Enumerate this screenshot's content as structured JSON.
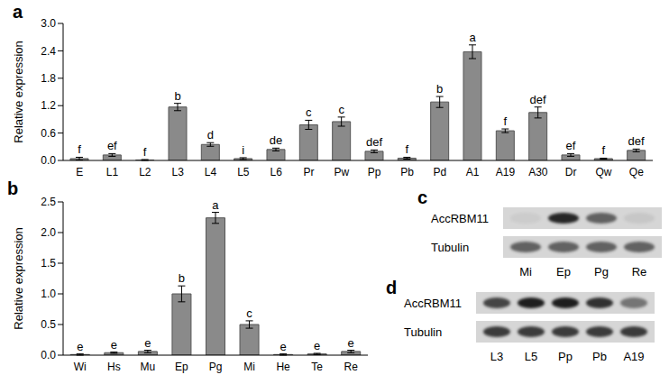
{
  "chart_data": [
    {
      "type": "bar",
      "panel": "a",
      "y_label": "Relative expression",
      "categories": [
        "E",
        "L1",
        "L2",
        "L3",
        "L4",
        "L5",
        "L6",
        "Pr",
        "Pw",
        "Pp",
        "Pb",
        "Pd",
        "A1",
        "A19",
        "A30",
        "Dr",
        "Qw",
        "Qe"
      ],
      "values": [
        0.04,
        0.12,
        0.01,
        1.17,
        0.35,
        0.04,
        0.24,
        0.78,
        0.85,
        0.2,
        0.05,
        1.28,
        2.38,
        0.65,
        1.05,
        0.12,
        0.04,
        0.22
      ],
      "errors": [
        0.03,
        0.03,
        0.01,
        0.08,
        0.04,
        0.02,
        0.03,
        0.1,
        0.1,
        0.03,
        0.02,
        0.12,
        0.15,
        0.04,
        0.12,
        0.03,
        0.01,
        0.03
      ],
      "letters": [
        "f",
        "ef",
        "f",
        "b",
        "d",
        "i",
        "de",
        "c",
        "c",
        "def",
        "f",
        "b",
        "a",
        "f",
        "def",
        "ef",
        "f",
        "def"
      ],
      "color": "#8a8a8a",
      "ylim": [
        0,
        3
      ],
      "yticks": [
        {
          "value": 0,
          "label": "0.0"
        },
        {
          "value": 0.6,
          "label": "0.6"
        },
        {
          "value": 1.2,
          "label": "1.2"
        },
        {
          "value": 1.8,
          "label": "1.8"
        },
        {
          "value": 2.4,
          "label": "2.4"
        },
        {
          "value": 3,
          "label": "3.0"
        }
      ]
    },
    {
      "type": "bar",
      "panel": "b",
      "y_label": "Relative expression",
      "categories": [
        "Wi",
        "Hs",
        "Mu",
        "Ep",
        "Pg",
        "Mi",
        "He",
        "Te",
        "Re"
      ],
      "values": [
        0.01,
        0.04,
        0.06,
        1.0,
        2.24,
        0.5,
        0.01,
        0.02,
        0.06
      ],
      "errors": [
        0.01,
        0.01,
        0.02,
        0.13,
        0.09,
        0.06,
        0.01,
        0.01,
        0.02
      ],
      "letters": [
        "e",
        "e",
        "e",
        "b",
        "a",
        "c",
        "e",
        "e",
        "e"
      ],
      "color": "#8a8a8a",
      "ylim": [
        0,
        2.5
      ],
      "yticks": [
        {
          "value": 0,
          "label": "0.0"
        },
        {
          "value": 0.5,
          "label": "0.5"
        },
        {
          "value": 1,
          "label": "1.0"
        },
        {
          "value": 1.5,
          "label": "1.5"
        },
        {
          "value": 2,
          "label": "2.0"
        },
        {
          "value": 2.5,
          "label": "2.5"
        }
      ]
    }
  ],
  "blots": [
    {
      "panel": "c",
      "lanes": [
        "Mi",
        "Ep",
        "Pg",
        "Re"
      ],
      "rows": [
        {
          "label": "AccRBM11",
          "band_intensity": [
            0.05,
            0.9,
            0.6,
            0.08
          ]
        },
        {
          "label": "Tubulin",
          "band_intensity": [
            0.6,
            0.6,
            0.6,
            0.6
          ]
        }
      ]
    },
    {
      "panel": "d",
      "lanes": [
        "L3",
        "L5",
        "Pp",
        "Pb",
        "A19"
      ],
      "rows": [
        {
          "label": "AccRBM11",
          "band_intensity": [
            0.75,
            0.95,
            0.95,
            0.85,
            0.5
          ]
        },
        {
          "label": "Tubulin",
          "band_intensity": [
            0.8,
            0.8,
            0.8,
            0.8,
            0.8
          ]
        }
      ]
    }
  ]
}
